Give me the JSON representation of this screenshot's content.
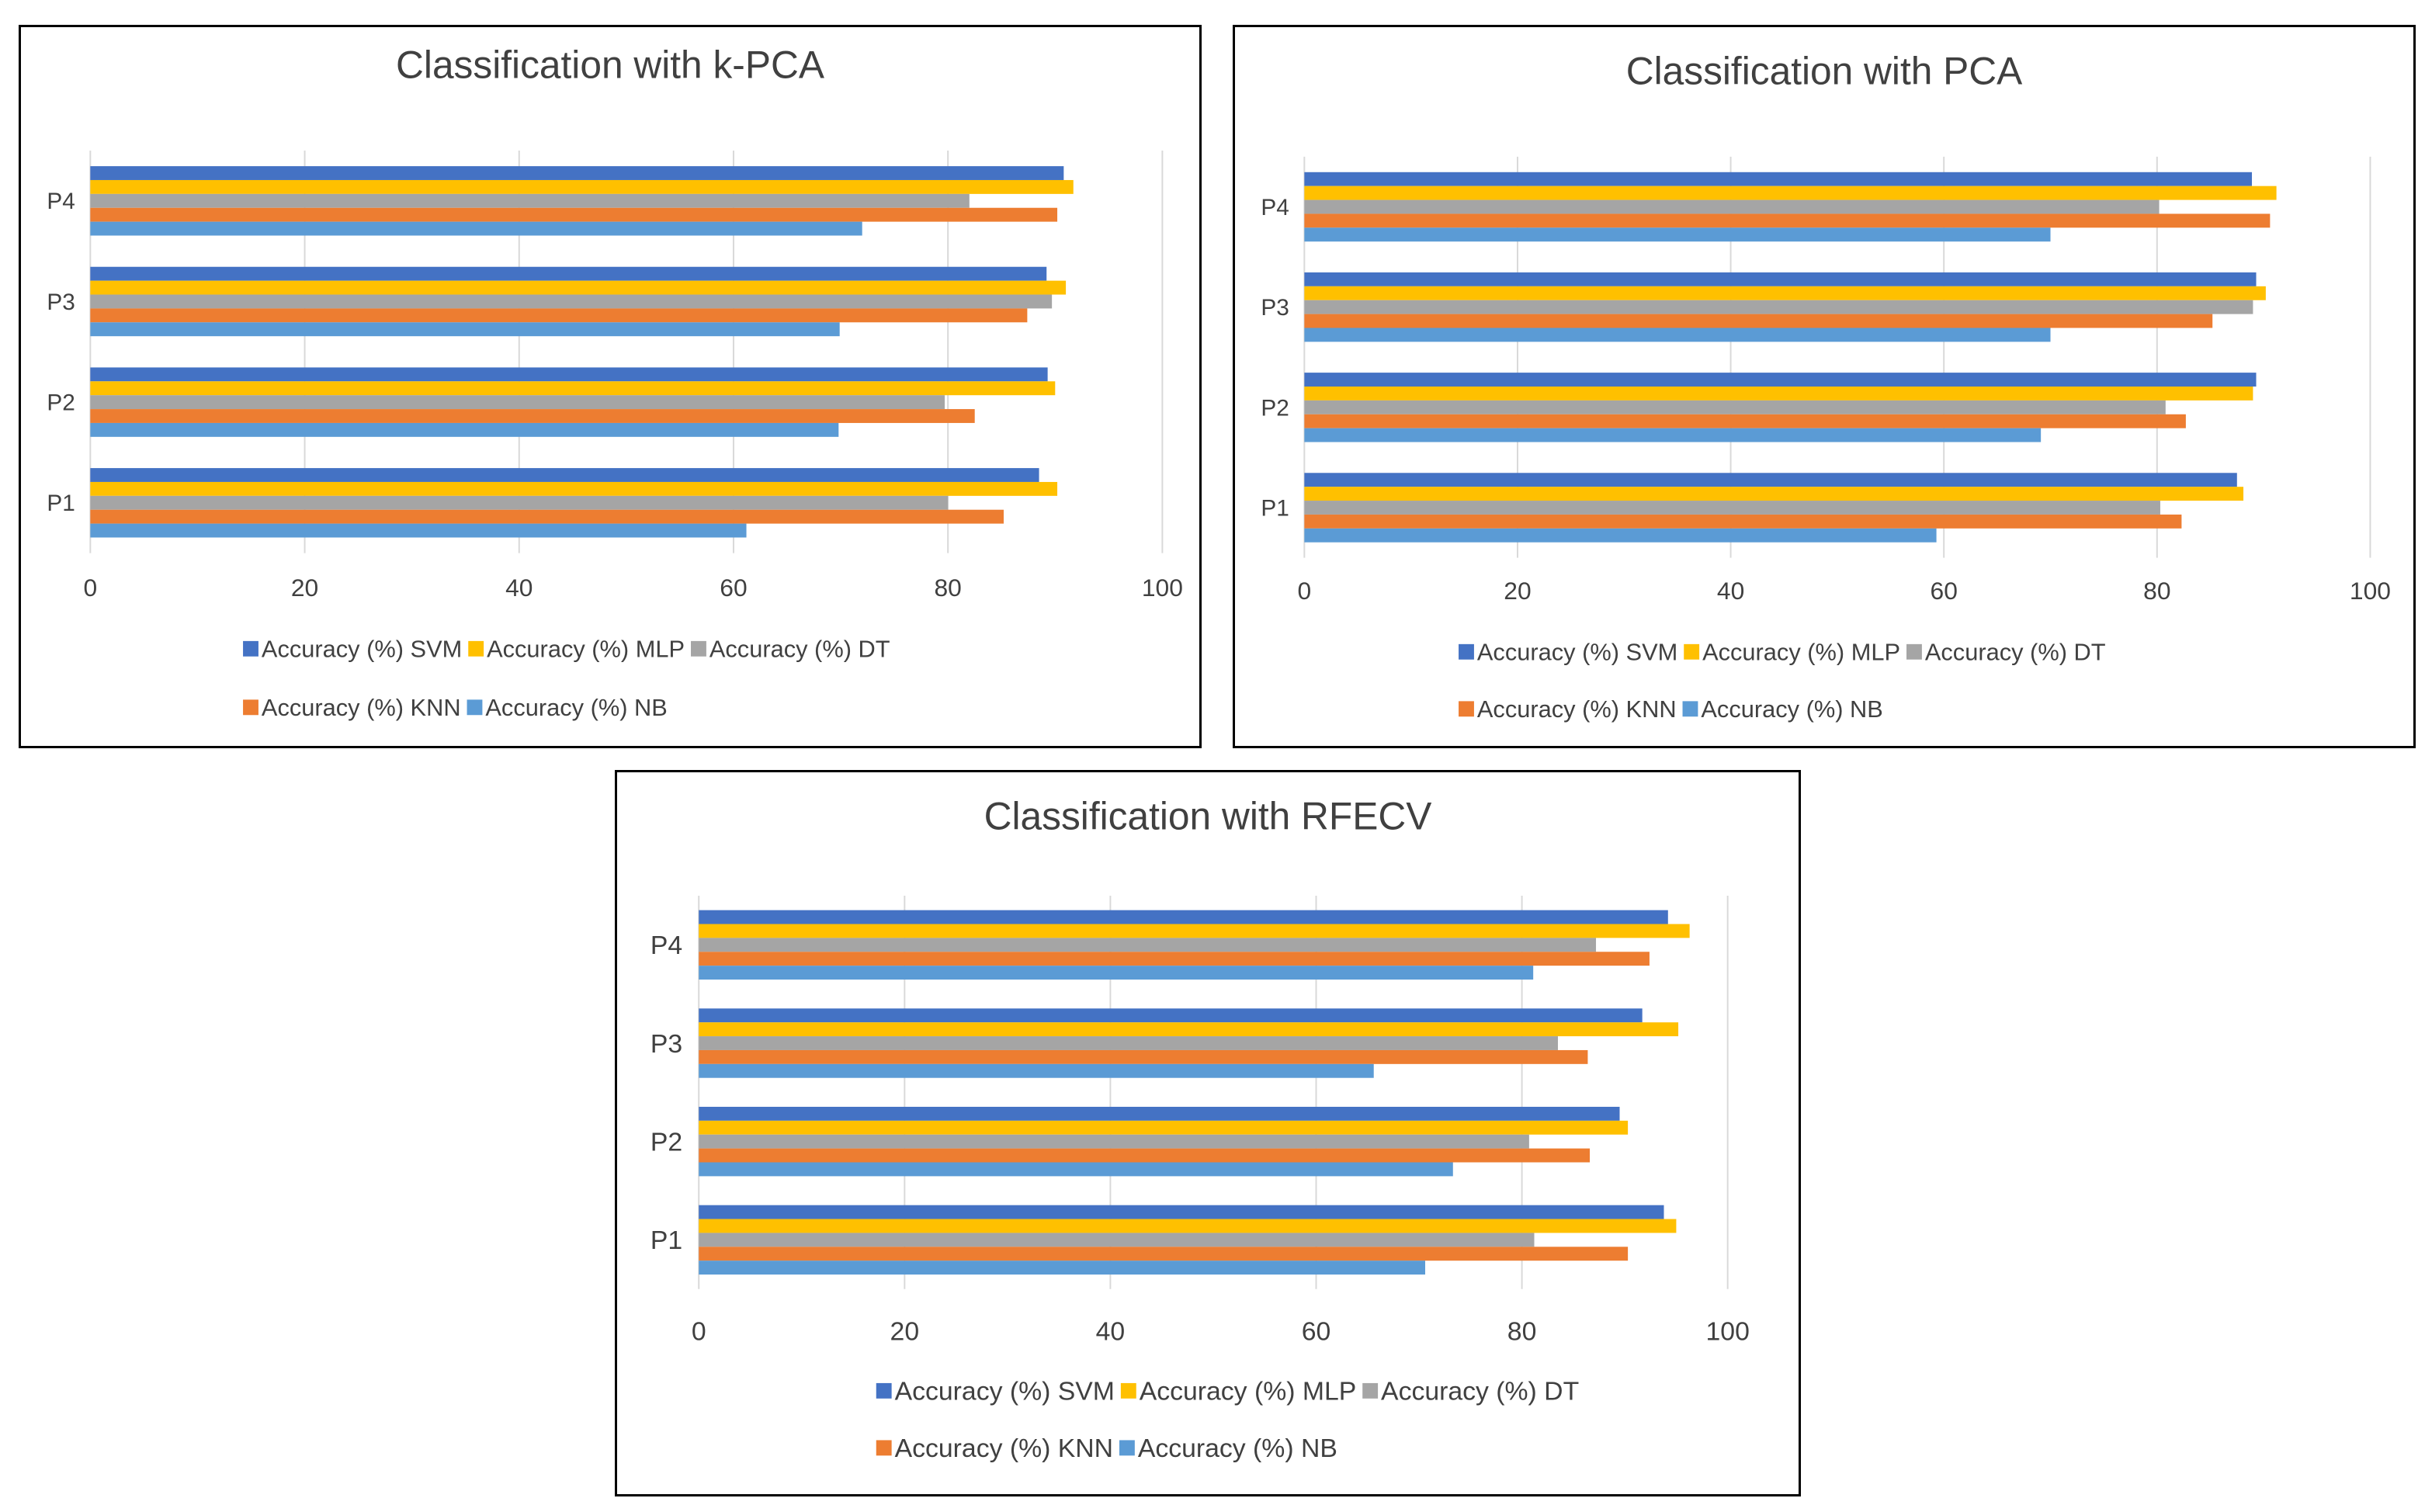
{
  "chart_data": [
    {
      "type": "bar",
      "orientation": "horizontal",
      "title": "Classification with k-PCA",
      "categories": [
        "P1",
        "P2",
        "P3",
        "P4"
      ],
      "xlim": [
        0,
        100
      ],
      "xticks": [
        0,
        20,
        40,
        60,
        80,
        100
      ],
      "grid": "vertical",
      "legend_position": "bottom",
      "series": [
        {
          "name": "Accuracy (%) SVM",
          "color": "#4472C4",
          "values": [
            88.5,
            89.3,
            89.2,
            90.8
          ]
        },
        {
          "name": "Accuracy (%) MLP",
          "color": "#FFC000",
          "values": [
            90.2,
            90.0,
            91.0,
            91.7
          ]
        },
        {
          "name": "Accuracy (%) DT",
          "color": "#A5A5A5",
          "values": [
            80.0,
            79.7,
            89.7,
            82.0
          ]
        },
        {
          "name": "Accuracy (%) KNN",
          "color": "#ED7D31",
          "values": [
            85.2,
            82.5,
            87.4,
            90.2
          ]
        },
        {
          "name": "Accuracy (%) NB",
          "color": "#5B9BD5",
          "values": [
            61.2,
            69.8,
            69.9,
            72.0
          ]
        }
      ]
    },
    {
      "type": "bar",
      "orientation": "horizontal",
      "title": "Classification with PCA",
      "categories": [
        "P1",
        "P2",
        "P3",
        "P4"
      ],
      "xlim": [
        0,
        100
      ],
      "xticks": [
        0,
        20,
        40,
        60,
        80,
        100
      ],
      "grid": "vertical",
      "legend_position": "bottom",
      "series": [
        {
          "name": "Accuracy (%) SVM",
          "color": "#4472C4",
          "values": [
            87.5,
            89.3,
            89.3,
            88.9
          ]
        },
        {
          "name": "Accuracy (%) MLP",
          "color": "#FFC000",
          "values": [
            88.1,
            89.0,
            90.2,
            91.2
          ]
        },
        {
          "name": "Accuracy (%) DT",
          "color": "#A5A5A5",
          "values": [
            80.3,
            80.8,
            89.0,
            80.2
          ]
        },
        {
          "name": "Accuracy (%) KNN",
          "color": "#ED7D31",
          "values": [
            82.3,
            82.7,
            85.2,
            90.6
          ]
        },
        {
          "name": "Accuracy (%) NB",
          "color": "#5B9BD5",
          "values": [
            59.3,
            69.1,
            70.0,
            70.0
          ]
        }
      ]
    },
    {
      "type": "bar",
      "orientation": "horizontal",
      "title": "Classification with RFECV",
      "categories": [
        "P1",
        "P2",
        "P3",
        "P4"
      ],
      "xlim": [
        0,
        100
      ],
      "xticks": [
        0,
        20,
        40,
        60,
        80,
        100
      ],
      "grid": "vertical",
      "legend_position": "bottom",
      "series": [
        {
          "name": "Accuracy (%) SVM",
          "color": "#4472C4",
          "values": [
            93.8,
            89.5,
            91.7,
            94.2
          ]
        },
        {
          "name": "Accuracy (%) MLP",
          "color": "#FFC000",
          "values": [
            95.0,
            90.3,
            95.2,
            96.3
          ]
        },
        {
          "name": "Accuracy (%) DT",
          "color": "#A5A5A5",
          "values": [
            81.2,
            80.7,
            83.5,
            87.2
          ]
        },
        {
          "name": "Accuracy (%) KNN",
          "color": "#ED7D31",
          "values": [
            90.3,
            86.6,
            86.4,
            92.4
          ]
        },
        {
          "name": "Accuracy (%) NB",
          "color": "#5B9BD5",
          "values": [
            70.6,
            73.3,
            65.6,
            81.1
          ]
        }
      ]
    }
  ]
}
